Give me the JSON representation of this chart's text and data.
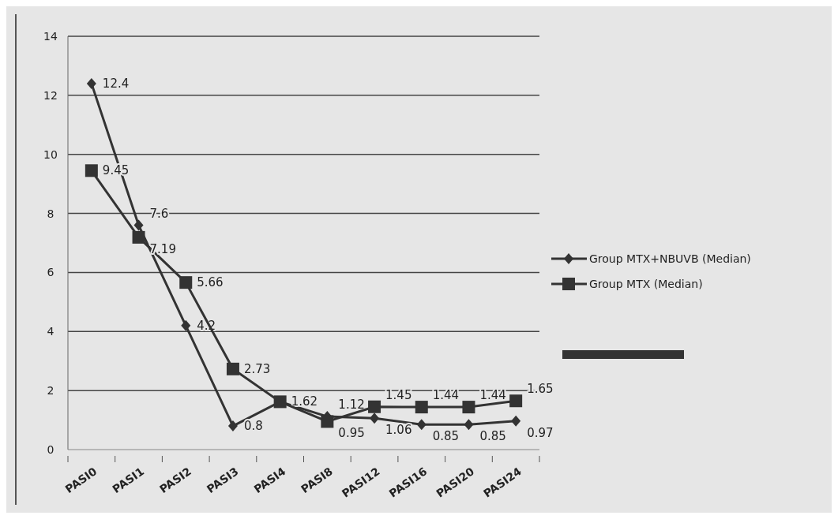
{
  "chart_data": {
    "type": "line",
    "categories": [
      "PASI0",
      "PASI1",
      "PASI2",
      "PASI3",
      "PASI4",
      "PASI8",
      "PASI12",
      "PASI16",
      "PASI20",
      "PASI24"
    ],
    "series": [
      {
        "name": "Group MTX+NBUVB (Median)",
        "color": "#333333",
        "marker": "diamond",
        "values": [
          12.4,
          7.6,
          4.2,
          0.8,
          1.62,
          1.12,
          1.06,
          0.85,
          0.85,
          0.97
        ],
        "value_labels": [
          "12.4",
          "7.6",
          "4.2",
          "0.8",
          "1.62",
          "1.12",
          "1.06",
          "0.85",
          "0.85",
          "0.97"
        ]
      },
      {
        "name": "Group MTX (Median)",
        "color": "#333333",
        "marker": "square",
        "values": [
          9.45,
          7.19,
          5.66,
          2.73,
          1.62,
          0.95,
          1.45,
          1.44,
          1.44,
          1.65
        ],
        "value_labels": [
          "9.45",
          "7.19",
          "5.66",
          "2.73",
          null,
          "0.95",
          "1.45",
          "1.44",
          "1.44",
          "1.65"
        ]
      }
    ],
    "ylim": [
      0,
      14
    ],
    "yticks": [
      0,
      2,
      4,
      6,
      8,
      10,
      12,
      14
    ],
    "grid": "y",
    "legend": "right"
  }
}
